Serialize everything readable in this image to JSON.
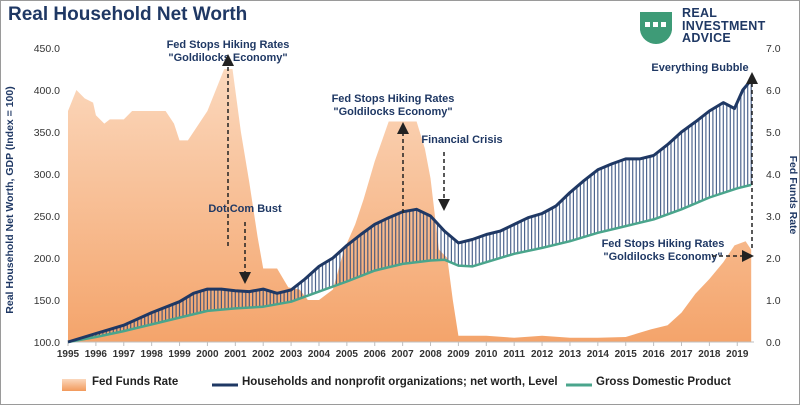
{
  "title": "Real Household Net Worth",
  "logo": {
    "lines": [
      "REAL",
      "INVESTMENT",
      "ADVICE"
    ]
  },
  "colors": {
    "fed_funds": "#f4a46b",
    "net_worth": "#1f3864",
    "gdp": "#4aa58c",
    "annotation": "#1f3864"
  },
  "chart_data": {
    "type": "area",
    "y_left": {
      "label": "Real Household Net Worth, GDP (Index = 100)",
      "min": 100,
      "max": 450,
      "ticks": [
        "100.0",
        "150.0",
        "200.0",
        "250.0",
        "300.0",
        "350.0",
        "400.0",
        "450.0"
      ]
    },
    "y_right": {
      "label": "Fed Funds Rate",
      "min": 0,
      "max": 7,
      "ticks": [
        "0.0",
        "1.0",
        "2.0",
        "3.0",
        "4.0",
        "5.0",
        "6.0",
        "7.0"
      ]
    },
    "x_ticks": [
      "1995",
      "1996",
      "1997",
      "1998",
      "1999",
      "2000",
      "2001",
      "2002",
      "2003",
      "2004",
      "2005",
      "2006",
      "2007",
      "2008",
      "2009",
      "2010",
      "2011",
      "2012",
      "2013",
      "2014",
      "2015",
      "2016",
      "2017",
      "2018",
      "2019"
    ],
    "x_range": [
      1995,
      2019.6
    ],
    "series": [
      {
        "name": "Fed Funds Rate",
        "axis": "right",
        "kind": "area",
        "points": [
          [
            1995.0,
            5.5
          ],
          [
            1995.3,
            6.0
          ],
          [
            1995.6,
            5.8
          ],
          [
            1995.9,
            5.7
          ],
          [
            1996.0,
            5.4
          ],
          [
            1996.3,
            5.2
          ],
          [
            1996.5,
            5.3
          ],
          [
            1997.0,
            5.3
          ],
          [
            1997.3,
            5.5
          ],
          [
            1997.6,
            5.5
          ],
          [
            1998.0,
            5.5
          ],
          [
            1998.5,
            5.5
          ],
          [
            1998.8,
            5.2
          ],
          [
            1999.0,
            4.8
          ],
          [
            1999.3,
            4.8
          ],
          [
            1999.6,
            5.1
          ],
          [
            2000.0,
            5.5
          ],
          [
            2000.3,
            6.0
          ],
          [
            2000.6,
            6.5
          ],
          [
            2000.9,
            6.5
          ],
          [
            2001.0,
            6.0
          ],
          [
            2001.2,
            5.0
          ],
          [
            2001.5,
            3.8
          ],
          [
            2001.8,
            2.5
          ],
          [
            2002.0,
            1.75
          ],
          [
            2002.5,
            1.75
          ],
          [
            2002.9,
            1.3
          ],
          [
            2003.3,
            1.25
          ],
          [
            2003.6,
            1.0
          ],
          [
            2004.0,
            1.0
          ],
          [
            2004.5,
            1.25
          ],
          [
            2004.9,
            2.2
          ],
          [
            2005.3,
            2.8
          ],
          [
            2005.6,
            3.4
          ],
          [
            2006.0,
            4.3
          ],
          [
            2006.5,
            5.25
          ],
          [
            2007.0,
            5.25
          ],
          [
            2007.5,
            5.25
          ],
          [
            2007.8,
            4.6
          ],
          [
            2008.0,
            3.9
          ],
          [
            2008.3,
            2.2
          ],
          [
            2008.6,
            2.0
          ],
          [
            2008.8,
            1.0
          ],
          [
            2009.0,
            0.15
          ],
          [
            2010.0,
            0.15
          ],
          [
            2011.0,
            0.1
          ],
          [
            2012.0,
            0.15
          ],
          [
            2013.0,
            0.1
          ],
          [
            2014.0,
            0.1
          ],
          [
            2015.0,
            0.12
          ],
          [
            2015.9,
            0.3
          ],
          [
            2016.5,
            0.4
          ],
          [
            2017.0,
            0.7
          ],
          [
            2017.5,
            1.15
          ],
          [
            2018.0,
            1.5
          ],
          [
            2018.5,
            1.9
          ],
          [
            2018.9,
            2.3
          ],
          [
            2019.3,
            2.4
          ],
          [
            2019.5,
            2.2
          ]
        ]
      },
      {
        "name": "Households and nonprofit organizations; net worth, Level",
        "axis": "left",
        "kind": "line",
        "points": [
          [
            1995.0,
            100
          ],
          [
            1996.0,
            110
          ],
          [
            1997.0,
            120
          ],
          [
            1998.0,
            135
          ],
          [
            1999.0,
            148
          ],
          [
            1999.5,
            158
          ],
          [
            2000.0,
            163
          ],
          [
            2000.5,
            163
          ],
          [
            2001.0,
            161
          ],
          [
            2001.5,
            160
          ],
          [
            2002.0,
            163
          ],
          [
            2002.5,
            158
          ],
          [
            2003.0,
            162
          ],
          [
            2003.5,
            175
          ],
          [
            2004.0,
            190
          ],
          [
            2004.5,
            200
          ],
          [
            2005.0,
            215
          ],
          [
            2005.5,
            228
          ],
          [
            2006.0,
            240
          ],
          [
            2006.5,
            248
          ],
          [
            2007.0,
            255
          ],
          [
            2007.5,
            258
          ],
          [
            2008.0,
            250
          ],
          [
            2008.5,
            232
          ],
          [
            2009.0,
            218
          ],
          [
            2009.5,
            222
          ],
          [
            2010.0,
            228
          ],
          [
            2010.5,
            232
          ],
          [
            2011.0,
            240
          ],
          [
            2011.5,
            248
          ],
          [
            2012.0,
            253
          ],
          [
            2012.5,
            262
          ],
          [
            2013.0,
            278
          ],
          [
            2013.5,
            292
          ],
          [
            2014.0,
            305
          ],
          [
            2014.5,
            312
          ],
          [
            2015.0,
            318
          ],
          [
            2015.5,
            318
          ],
          [
            2016.0,
            322
          ],
          [
            2016.5,
            335
          ],
          [
            2017.0,
            350
          ],
          [
            2017.5,
            362
          ],
          [
            2018.0,
            375
          ],
          [
            2018.5,
            385
          ],
          [
            2018.9,
            378
          ],
          [
            2019.2,
            400
          ],
          [
            2019.5,
            412
          ]
        ]
      },
      {
        "name": "Gross Domestic Product",
        "axis": "left",
        "kind": "line",
        "points": [
          [
            1995.0,
            100
          ],
          [
            1996.0,
            106
          ],
          [
            1997.0,
            113
          ],
          [
            1998.0,
            121
          ],
          [
            1999.0,
            129
          ],
          [
            2000.0,
            137
          ],
          [
            2001.0,
            140
          ],
          [
            2002.0,
            142
          ],
          [
            2003.0,
            148
          ],
          [
            2004.0,
            160
          ],
          [
            2005.0,
            172
          ],
          [
            2006.0,
            185
          ],
          [
            2007.0,
            193
          ],
          [
            2008.0,
            197
          ],
          [
            2008.5,
            198
          ],
          [
            2009.0,
            191
          ],
          [
            2009.5,
            190
          ],
          [
            2010.0,
            195
          ],
          [
            2011.0,
            205
          ],
          [
            2012.0,
            212
          ],
          [
            2013.0,
            220
          ],
          [
            2014.0,
            230
          ],
          [
            2015.0,
            238
          ],
          [
            2016.0,
            246
          ],
          [
            2017.0,
            258
          ],
          [
            2018.0,
            272
          ],
          [
            2019.0,
            283
          ],
          [
            2019.5,
            287
          ]
        ]
      }
    ],
    "annotations": [
      {
        "lines": [
          "Fed Stops Hiking Rates",
          "\"Goldilocks Economy\""
        ]
      },
      {
        "lines": [
          "Dot.Com Bust"
        ]
      },
      {
        "lines": [
          "Fed Stops Hiking Rates",
          "\"Goldilocks Economy\""
        ]
      },
      {
        "lines": [
          "Financial Crisis"
        ]
      },
      {
        "lines": [
          "Everything Bubble"
        ]
      },
      {
        "lines": [
          "Fed Stops Hiking Rates",
          "\"Goldilocks Economy\""
        ]
      }
    ]
  },
  "legend": [
    {
      "label": "Fed Funds Rate"
    },
    {
      "label": "Households and nonprofit organizations; net worth, Level"
    },
    {
      "label": "Gross Domestic Product"
    }
  ]
}
